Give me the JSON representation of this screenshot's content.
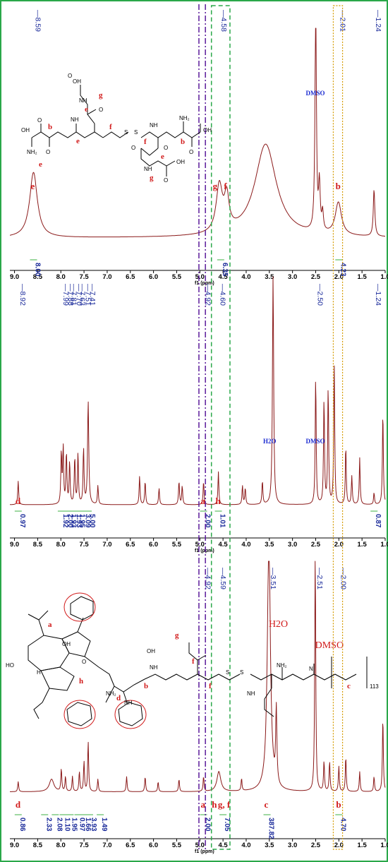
{
  "figure": {
    "x_unit_label": "f1 (ppm)",
    "x_ticks": [
      "9.0",
      "8.5",
      "8.0",
      "7.5",
      "7.0",
      "6.5",
      "6.0",
      "5.5",
      "5.0",
      "4.5",
      "4.0",
      "3.5",
      "3.0",
      "2.5",
      "2.0",
      "1.5",
      "1.0"
    ],
    "colors": {
      "spectrum": "#8b1a1a",
      "frame": "#2aa84a",
      "integral": "#3cb043",
      "peak_label": "#1a2a9a",
      "assignment": "#d11a1a",
      "guide_purple": "#5a1a9a",
      "guide_green": "#2aa84a",
      "guide_orange": "#d49a00"
    }
  },
  "chart_data": [
    {
      "type": "line",
      "panel": "top",
      "x_range": [
        9.1,
        1.0
      ],
      "x_reversed": true,
      "peak_labels": [
        {
          "text": "8.59",
          "x": 8.59
        },
        {
          "text": "4.58",
          "x": 4.58
        },
        {
          "text": "2.01",
          "x": 2.01
        },
        {
          "text": "1.24",
          "x": 1.24
        }
      ],
      "integrals": [
        {
          "text": "8.00",
          "x": 8.59
        },
        {
          "text": "6.35",
          "x": 4.55
        },
        {
          "text": "4.23",
          "x": 2.0
        }
      ],
      "assignments": [
        {
          "text": "e",
          "x": 8.59
        },
        {
          "text": "g",
          "x": 4.66
        },
        {
          "text": "f",
          "x": 4.42
        },
        {
          "text": "b",
          "x": 2.01
        }
      ],
      "solvents": [
        {
          "text": "DMSO",
          "x": 2.5
        }
      ],
      "peaks": [
        {
          "x": 8.59,
          "h": 0.28,
          "w": 0.1
        },
        {
          "x": 4.58,
          "h": 0.2,
          "w": 0.08
        },
        {
          "x": 4.42,
          "h": 0.14,
          "w": 0.06
        },
        {
          "x": 3.58,
          "h": 0.4,
          "w": 0.28
        },
        {
          "x": 2.5,
          "h": 0.97,
          "w": 0.018
        },
        {
          "x": 2.42,
          "h": 0.2,
          "w": 0.02
        },
        {
          "x": 2.35,
          "h": 0.08,
          "w": 0.02
        },
        {
          "x": 2.01,
          "h": 0.14,
          "w": 0.08
        },
        {
          "x": 1.24,
          "h": 0.2,
          "w": 0.02
        }
      ],
      "baseline": 0.1
    },
    {
      "type": "line",
      "panel": "middle",
      "x_range": [
        9.1,
        1.0
      ],
      "x_reversed": true,
      "peak_labels": [
        {
          "text": "8.92",
          "x": 8.92
        },
        {
          "text": "7.99",
          "x": 7.99
        },
        {
          "text": "7.88",
          "x": 7.88
        },
        {
          "text": "7.81",
          "x": 7.81
        },
        {
          "text": "7.70",
          "x": 7.7
        },
        {
          "text": "7.63",
          "x": 7.63
        },
        {
          "text": "7.51",
          "x": 7.51
        },
        {
          "text": "7.41",
          "x": 7.41
        },
        {
          "text": "4.92",
          "x": 4.92
        },
        {
          "text": "4.60",
          "x": 4.6
        },
        {
          "text": "2.50",
          "x": 2.5
        },
        {
          "text": "1.24",
          "x": 1.24
        }
      ],
      "integrals": [
        {
          "text": "0.97",
          "x": 8.92
        },
        {
          "text": "1.92",
          "x": 7.99
        },
        {
          "text": "2.00",
          "x": 7.88
        },
        {
          "text": "1.93",
          "x": 7.81
        },
        {
          "text": "1.93",
          "x": 7.7
        },
        {
          "text": "1.95",
          "x": 7.63
        },
        {
          "text": "3.09",
          "x": 7.51
        },
        {
          "text": "5.00",
          "x": 7.41
        },
        {
          "text": "2.00",
          "x": 4.92
        },
        {
          "text": "1.01",
          "x": 4.6
        },
        {
          "text": "0.87",
          "x": 1.24
        }
      ],
      "assignments": [
        {
          "text": "d",
          "x": 8.92
        },
        {
          "text": "a",
          "x": 4.92
        },
        {
          "text": "h",
          "x": 4.6
        }
      ],
      "solvents": [
        {
          "text": "H2O",
          "x": 3.42
        },
        {
          "text": "DMSO",
          "x": 2.5
        }
      ],
      "peaks": [
        {
          "x": 8.92,
          "h": 0.1,
          "w": 0.012
        },
        {
          "x": 7.99,
          "h": 0.22,
          "w": 0.012
        },
        {
          "x": 7.95,
          "h": 0.24,
          "w": 0.012
        },
        {
          "x": 7.88,
          "h": 0.22,
          "w": 0.012
        },
        {
          "x": 7.81,
          "h": 0.18,
          "w": 0.012
        },
        {
          "x": 7.7,
          "h": 0.2,
          "w": 0.012
        },
        {
          "x": 7.63,
          "h": 0.22,
          "w": 0.012
        },
        {
          "x": 7.51,
          "h": 0.24,
          "w": 0.012
        },
        {
          "x": 7.41,
          "h": 0.44,
          "w": 0.015
        },
        {
          "x": 7.2,
          "h": 0.08,
          "w": 0.012
        },
        {
          "x": 6.3,
          "h": 0.12,
          "w": 0.012
        },
        {
          "x": 6.18,
          "h": 0.1,
          "w": 0.012
        },
        {
          "x": 5.88,
          "h": 0.07,
          "w": 0.012
        },
        {
          "x": 5.45,
          "h": 0.1,
          "w": 0.012
        },
        {
          "x": 5.38,
          "h": 0.08,
          "w": 0.012
        },
        {
          "x": 4.92,
          "h": 0.1,
          "w": 0.012
        },
        {
          "x": 4.6,
          "h": 0.14,
          "w": 0.012
        },
        {
          "x": 4.08,
          "h": 0.08,
          "w": 0.012
        },
        {
          "x": 4.02,
          "h": 0.07,
          "w": 0.012
        },
        {
          "x": 3.65,
          "h": 0.1,
          "w": 0.012
        },
        {
          "x": 3.42,
          "h": 0.98,
          "w": 0.015
        },
        {
          "x": 2.5,
          "h": 0.55,
          "w": 0.012
        },
        {
          "x": 2.32,
          "h": 0.45,
          "w": 0.012
        },
        {
          "x": 2.23,
          "h": 0.5,
          "w": 0.012
        },
        {
          "x": 2.1,
          "h": 0.6,
          "w": 0.012
        },
        {
          "x": 1.85,
          "h": 0.25,
          "w": 0.012
        },
        {
          "x": 1.72,
          "h": 0.12,
          "w": 0.012
        },
        {
          "x": 1.55,
          "h": 0.2,
          "w": 0.012
        },
        {
          "x": 1.24,
          "h": 0.05,
          "w": 0.012
        },
        {
          "x": 1.05,
          "h": 0.4,
          "w": 0.012
        }
      ],
      "baseline": 0.03
    },
    {
      "type": "line",
      "panel": "bottom",
      "x_range": [
        9.1,
        1.0
      ],
      "x_reversed": true,
      "peak_labels": [
        {
          "text": "4.92",
          "x": 4.92
        },
        {
          "text": "4.59",
          "x": 4.59
        },
        {
          "text": "3.51",
          "x": 3.51
        },
        {
          "text": "2.51",
          "x": 2.51
        },
        {
          "text": "2.00",
          "x": 2.0
        }
      ],
      "integrals": [
        {
          "text": "0.86",
          "x": 8.92
        },
        {
          "text": "2.33",
          "x": 8.35
        },
        {
          "text": "2.08",
          "x": 8.12
        },
        {
          "text": "1.10",
          "x": 7.95
        },
        {
          "text": "1.95",
          "x": 7.8
        },
        {
          "text": "0.97",
          "x": 7.63
        },
        {
          "text": "1.66",
          "x": 7.5
        },
        {
          "text": "3.93",
          "x": 7.38
        },
        {
          "text": "1.49",
          "x": 7.15
        },
        {
          "text": "2.00",
          "x": 4.92
        },
        {
          "text": "7.05",
          "x": 4.5
        },
        {
          "text": "387.82",
          "x": 3.55
        },
        {
          "text": "4.70",
          "x": 2.0
        }
      ],
      "assignments": [
        {
          "text": "d",
          "x": 8.92
        },
        {
          "text": "a",
          "x": 4.92
        },
        {
          "text": "h",
          "x": 4.68
        },
        {
          "text": "g, f",
          "x": 4.55
        },
        {
          "text": "c",
          "x": 3.55
        },
        {
          "text": "b",
          "x": 2.0
        }
      ],
      "solvents": [
        {
          "text": "H2O",
          "x": 3.3
        },
        {
          "text": "DMSO",
          "x": 2.3
        }
      ],
      "peaks": [
        {
          "x": 8.92,
          "h": 0.04,
          "w": 0.012
        },
        {
          "x": 8.2,
          "h": 0.05,
          "w": 0.06
        },
        {
          "x": 7.99,
          "h": 0.09,
          "w": 0.012
        },
        {
          "x": 7.9,
          "h": 0.06,
          "w": 0.012
        },
        {
          "x": 7.75,
          "h": 0.06,
          "w": 0.012
        },
        {
          "x": 7.6,
          "h": 0.08,
          "w": 0.012
        },
        {
          "x": 7.5,
          "h": 0.12,
          "w": 0.012
        },
        {
          "x": 7.41,
          "h": 0.2,
          "w": 0.012
        },
        {
          "x": 7.2,
          "h": 0.05,
          "w": 0.012
        },
        {
          "x": 6.58,
          "h": 0.06,
          "w": 0.012
        },
        {
          "x": 6.18,
          "h": 0.06,
          "w": 0.012
        },
        {
          "x": 5.9,
          "h": 0.04,
          "w": 0.012
        },
        {
          "x": 5.45,
          "h": 0.05,
          "w": 0.012
        },
        {
          "x": 4.92,
          "h": 0.06,
          "w": 0.012
        },
        {
          "x": 4.59,
          "h": 0.08,
          "w": 0.05
        },
        {
          "x": 4.1,
          "h": 0.05,
          "w": 0.012
        },
        {
          "x": 3.51,
          "h": 1.0,
          "w": 0.04
        },
        {
          "x": 3.35,
          "h": 0.3,
          "w": 0.015
        },
        {
          "x": 2.51,
          "h": 1.0,
          "w": 0.012
        },
        {
          "x": 2.32,
          "h": 0.12,
          "w": 0.012
        },
        {
          "x": 2.2,
          "h": 0.12,
          "w": 0.012
        },
        {
          "x": 2.0,
          "h": 0.1,
          "w": 0.012
        },
        {
          "x": 1.85,
          "h": 0.14,
          "w": 0.012
        },
        {
          "x": 1.55,
          "h": 0.08,
          "w": 0.012
        },
        {
          "x": 1.24,
          "h": 0.06,
          "w": 0.012
        },
        {
          "x": 1.05,
          "h": 0.3,
          "w": 0.012
        }
      ],
      "baseline": 0.08
    }
  ],
  "structure_top": {
    "labels": {
      "e1": "e",
      "e2": "e",
      "e3": "e",
      "e4": "e",
      "g1": "g",
      "g2": "g",
      "b1": "b",
      "b2": "b",
      "f1": "f",
      "f2": "f"
    },
    "atoms": {
      "OH1": "OH",
      "OH2": "OH",
      "OH3": "OH",
      "OH4": "OH",
      "NH1": "NH",
      "NH2": "NH",
      "NH3": "NH",
      "NH4": "NH",
      "NH2a": "NH₂",
      "NH2b": "NH₂",
      "S1": "S",
      "S2": "S",
      "O1": "O",
      "O2": "O",
      "O3": "O",
      "O4": "O",
      "O5": "O",
      "O6": "O",
      "O7": "O",
      "O8": "O"
    }
  },
  "structure_bottom": {
    "labels": {
      "a": "a",
      "h": "h",
      "d": "d",
      "b": "b",
      "g": "g",
      "f1": "f",
      "f2": "f",
      "c": "c"
    },
    "atoms": {
      "HO1": "HO",
      "OH1": "OH",
      "OH2": "OH",
      "O1": "O",
      "NH1": "NH",
      "NH2": "NH",
      "NH3": "NH",
      "NH2a": "NH₂",
      "NH2b": "NH₂",
      "S1": "S",
      "S2": "S",
      "H": "H",
      "N": "N"
    },
    "repeat_subscript": "113"
  },
  "legend_like": {
    "dmso_top": "DMSO",
    "h2o_mid": "H2O",
    "dmso_mid": "DMSO",
    "h2o_bottom": "H2O",
    "dmso_bottom": "DMSO"
  }
}
